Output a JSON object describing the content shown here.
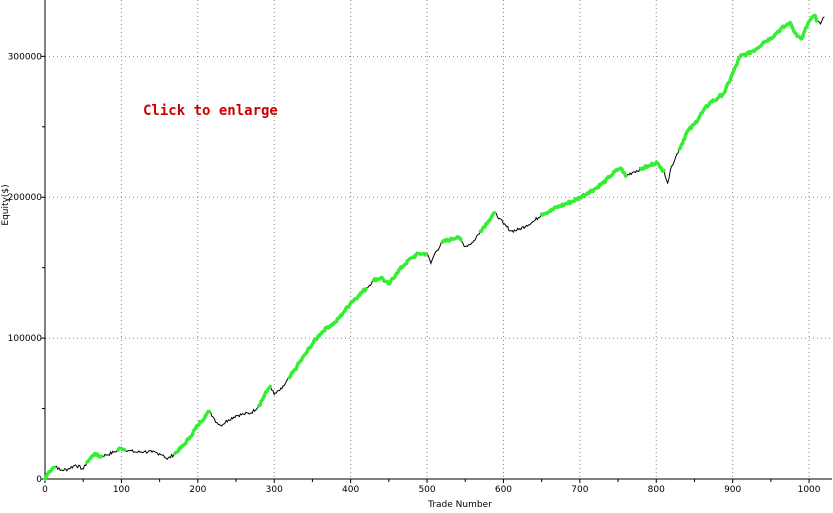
{
  "overlay": {
    "link_text": "Click to enlarge",
    "color": "#cc0000"
  },
  "chart_data": {
    "type": "line",
    "title": "",
    "xlabel": "Trade Number",
    "ylabel": "Equity($)",
    "xlim": [
      0,
      1030
    ],
    "ylim": [
      0,
      340000
    ],
    "x_ticks": [
      0,
      100,
      200,
      300,
      400,
      500,
      600,
      700,
      800,
      900,
      1000
    ],
    "y_ticks": [
      0,
      100000,
      200000,
      300000
    ],
    "x_tick_labels": [
      "0",
      "100",
      "200",
      "300",
      "400",
      "500",
      "600",
      "700",
      "800",
      "900",
      "1000"
    ],
    "y_tick_labels": [
      "0",
      "100000",
      "200000",
      "300000"
    ],
    "grid": true,
    "colors": {
      "equity_line": "#000000",
      "new_high_marker": "#33ee33",
      "grid": "#888888"
    },
    "series": [
      {
        "x": [
          0,
          5,
          10,
          15,
          20,
          30,
          40,
          50,
          55,
          60,
          65,
          70,
          80,
          90,
          100,
          110,
          120,
          130,
          140,
          150,
          155,
          160,
          170,
          180,
          190,
          200,
          210,
          215,
          220,
          225,
          230,
          240,
          250,
          260,
          270,
          280,
          290,
          295,
          300,
          310,
          320,
          330,
          340,
          350,
          360,
          370,
          380,
          390,
          400,
          410,
          420,
          430,
          440,
          450,
          460,
          470,
          480,
          490,
          500,
          505,
          510,
          520,
          530,
          540,
          550,
          560,
          570,
          580,
          588,
          595,
          600,
          610,
          620,
          630,
          640,
          650,
          660,
          670,
          680,
          690,
          700,
          710,
          720,
          730,
          740,
          750,
          755,
          760,
          770,
          780,
          790,
          800,
          805,
          810,
          815,
          820,
          830,
          840,
          850,
          860,
          870,
          880,
          890,
          900,
          910,
          920,
          930,
          940,
          950,
          960,
          970,
          975,
          980,
          990,
          1000,
          1008,
          1010,
          1015,
          1020
        ],
        "y": [
          0,
          5000,
          8000,
          9000,
          6000,
          7000,
          10000,
          7000,
          12000,
          15000,
          18000,
          16000,
          17000,
          19000,
          22000,
          20000,
          19000,
          19500,
          19000,
          18000,
          17000,
          14000,
          18000,
          23000,
          30000,
          38000,
          45000,
          48000,
          44000,
          40000,
          38000,
          42000,
          45000,
          46000,
          47000,
          52000,
          62000,
          66000,
          60000,
          64000,
          72000,
          80000,
          88000,
          96000,
          103000,
          108000,
          111000,
          118000,
          125000,
          130000,
          135000,
          141000,
          143000,
          138000,
          146000,
          152000,
          157000,
          160000,
          160000,
          153000,
          160000,
          168000,
          170000,
          172000,
          165000,
          168000,
          176000,
          183000,
          189000,
          185000,
          181000,
          176000,
          177000,
          180000,
          183000,
          188000,
          190000,
          193000,
          195000,
          197000,
          200000,
          203000,
          206000,
          210000,
          215000,
          220000,
          220000,
          215000,
          218000,
          220000,
          222000,
          225000,
          221000,
          219000,
          210000,
          222000,
          234000,
          246000,
          252000,
          260000,
          267000,
          270000,
          275000,
          288000,
          300000,
          302000,
          305000,
          310000,
          313000,
          318000,
          322000,
          324000,
          318000,
          312000,
          325000,
          329000,
          325000,
          323000,
          328000
        ]
      }
    ],
    "new_high_ranges": [
      [
        0,
        12
      ],
      [
        55,
        75
      ],
      [
        95,
        105
      ],
      [
        170,
        215
      ],
      [
        280,
        295
      ],
      [
        320,
        420
      ],
      [
        430,
        500
      ],
      [
        520,
        545
      ],
      [
        570,
        588
      ],
      [
        650,
        760
      ],
      [
        780,
        810
      ],
      [
        830,
        1010
      ]
    ]
  }
}
